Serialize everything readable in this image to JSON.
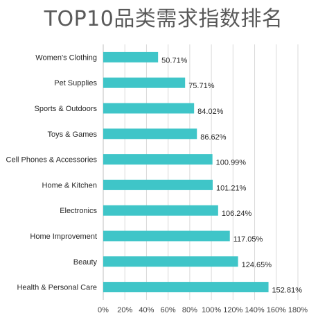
{
  "chart_data": {
    "type": "bar",
    "orientation": "horizontal",
    "title": "TOP10品类需求指数排名",
    "categories": [
      "Women's Clothing",
      "Pet Supplies",
      "Sports & Outdoors",
      "Toys & Games",
      "Cell Phones & Accessories",
      "Home & Kitchen",
      "Electronics",
      "Home Improvement",
      "Beauty",
      "Health & Personal Care"
    ],
    "values": [
      50.71,
      75.71,
      84.02,
      86.62,
      100.99,
      101.21,
      106.24,
      117.05,
      124.65,
      152.81
    ],
    "value_labels": [
      "50.71%",
      "75.71%",
      "84.02%",
      "86.62%",
      "100.99%",
      "101.21%",
      "106.24%",
      "117.05%",
      "124.65%",
      "152.81%"
    ],
    "xlim": [
      0,
      180
    ],
    "x_ticks": [
      "0%",
      "20%",
      "40%",
      "60%",
      "80%",
      "100%",
      "120%",
      "140%",
      "160%",
      "180%"
    ],
    "grid": true,
    "legend": "none",
    "bar_color": "#3fc5c8"
  }
}
